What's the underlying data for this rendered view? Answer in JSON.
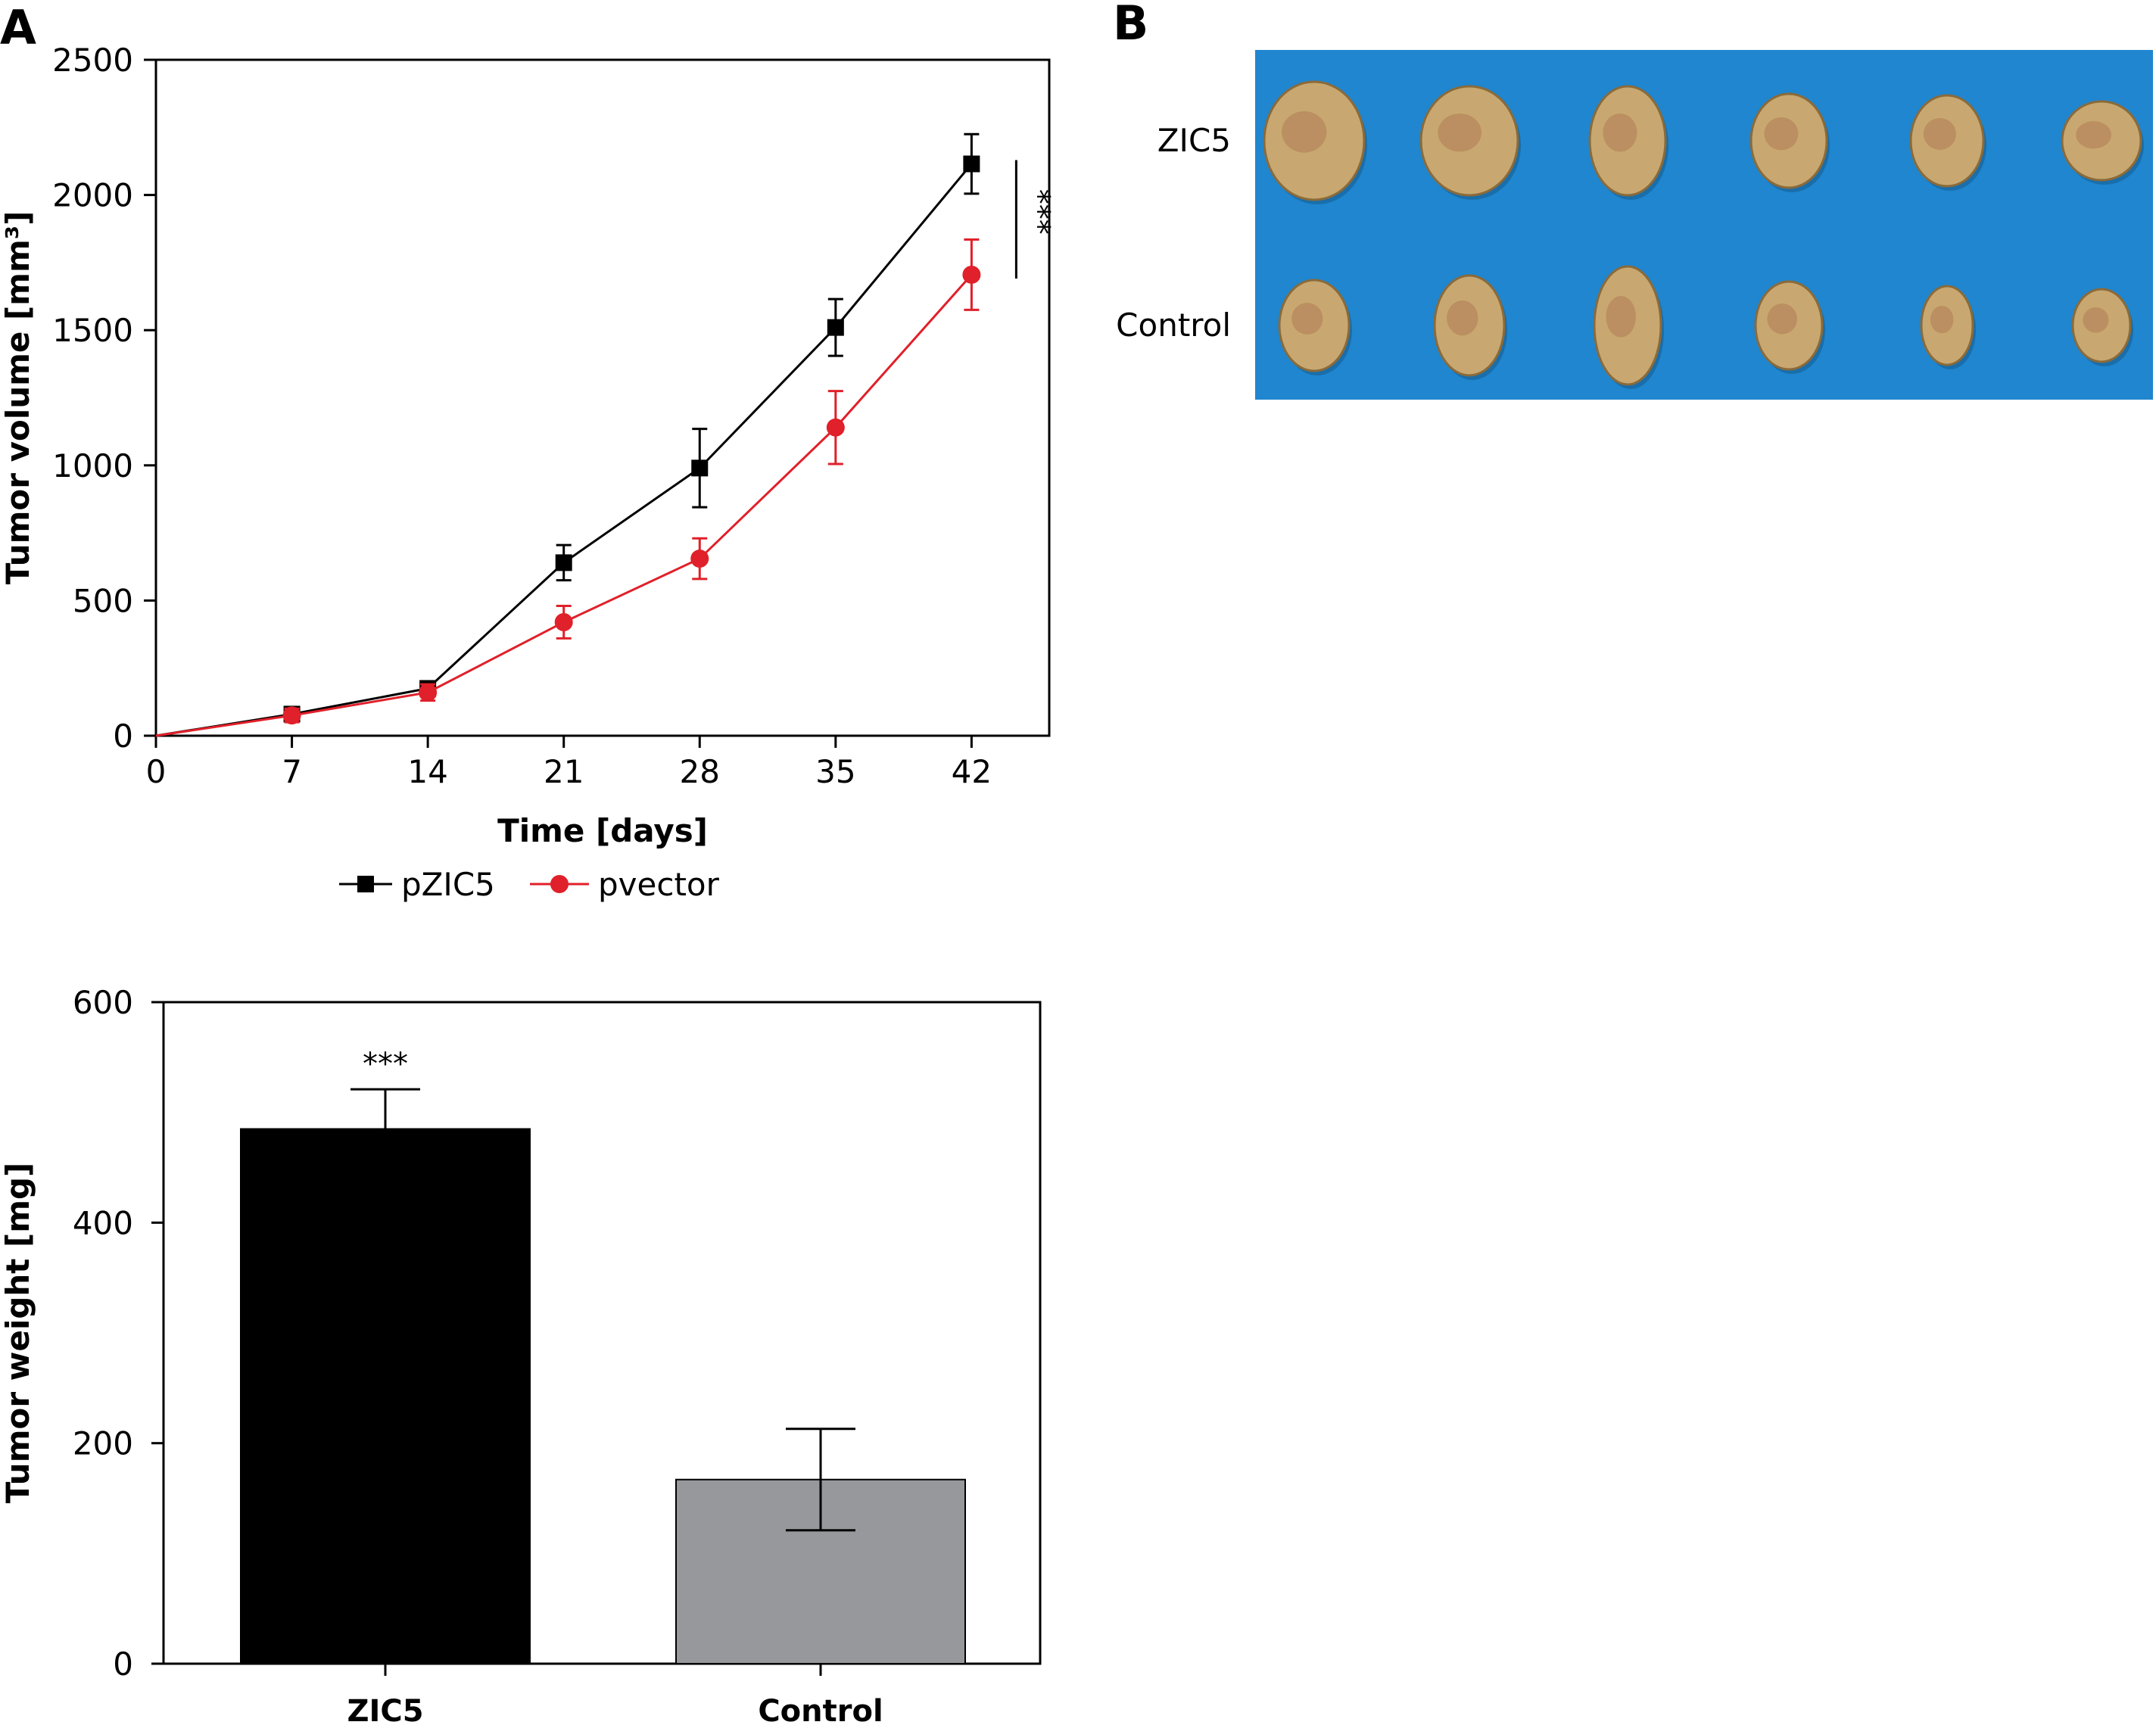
{
  "panels": {
    "a_label": "A",
    "b_label": "B"
  },
  "chart_data": [
    {
      "type": "line",
      "xlabel": "Time [days]",
      "ylabel": "Tumor volume [mm³]",
      "x": [
        0,
        7,
        14,
        21,
        28,
        35,
        42
      ],
      "xlim": [
        0,
        46
      ],
      "ylim": [
        0,
        2500
      ],
      "xticks": [
        0,
        7,
        14,
        21,
        28,
        35,
        42
      ],
      "yticks": [
        0,
        500,
        1000,
        1500,
        2000,
        2500
      ],
      "grid": false,
      "legend_position": "bottom",
      "significance_label": "***",
      "series": [
        {
          "name": "pZIC5",
          "color": "#000000",
          "marker": "square",
          "values": [
            0,
            80,
            175,
            640,
            990,
            1510,
            2115
          ],
          "errors": [
            0,
            25,
            25,
            65,
            145,
            105,
            110
          ]
        },
        {
          "name": "pvector",
          "color": "#e0202a",
          "marker": "circle",
          "values": [
            0,
            75,
            160,
            420,
            655,
            1140,
            1705
          ],
          "errors": [
            0,
            25,
            30,
            60,
            75,
            135,
            130
          ]
        }
      ]
    },
    {
      "type": "bar",
      "xlabel": "",
      "ylabel": "Tumor weight [mg]",
      "categories": [
        "ZIC5",
        "Control"
      ],
      "values": [
        485,
        167
      ],
      "errors": [
        36,
        46
      ],
      "bar_colors": [
        "#000000",
        "#97989b"
      ],
      "ylim": [
        0,
        600
      ],
      "yticks": [
        0,
        200,
        400,
        600
      ],
      "grid": false,
      "significance_label": "***"
    }
  ],
  "photo": {
    "row_labels": [
      "ZIC5",
      "Control"
    ],
    "background_color": "#1f86cf",
    "tumor_color": "#c8a870"
  }
}
